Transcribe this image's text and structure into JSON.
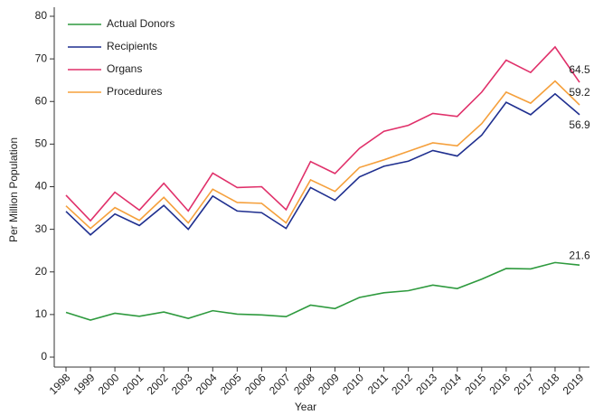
{
  "chart_data": {
    "type": "line",
    "xlabel": "Year",
    "ylabel": "Per Million Population",
    "categories": [
      "1998",
      "1999",
      "2000",
      "2001",
      "2002",
      "2003",
      "2004",
      "2005",
      "2006",
      "2007",
      "2008",
      "2009",
      "2010",
      "2011",
      "2012",
      "2013",
      "2014",
      "2015",
      "2016",
      "2017",
      "2018",
      "2019"
    ],
    "series": [
      {
        "name": "Actual Donors",
        "color": "#2e9a3e",
        "values": [
          10.5,
          8.7,
          10.3,
          9.6,
          10.6,
          9.1,
          10.9,
          10.1,
          9.9,
          9.5,
          12.2,
          11.4,
          14.0,
          15.1,
          15.6,
          16.9,
          16.1,
          18.3,
          20.8,
          20.7,
          22.2,
          21.6
        ],
        "value_labels": [
          null,
          null,
          null,
          null,
          null,
          null,
          null,
          null,
          null,
          null,
          null,
          null,
          null,
          null,
          null,
          null,
          null,
          null,
          null,
          null,
          null,
          "21.6"
        ]
      },
      {
        "name": "Recipients",
        "color": "#1f2f8f",
        "values": [
          34.2,
          28.7,
          33.6,
          30.9,
          35.6,
          30.0,
          37.8,
          34.3,
          33.9,
          30.2,
          39.8,
          36.8,
          42.3,
          44.8,
          46.0,
          48.5,
          47.2,
          52.1,
          59.8,
          56.9,
          61.8,
          56.9
        ],
        "value_labels": [
          null,
          null,
          null,
          null,
          null,
          null,
          null,
          null,
          null,
          null,
          null,
          null,
          null,
          null,
          null,
          null,
          null,
          null,
          null,
          null,
          null,
          "56.9"
        ]
      },
      {
        "name": "Organs",
        "color": "#e0306a",
        "values": [
          38.0,
          32.0,
          38.7,
          34.5,
          40.8,
          34.3,
          43.2,
          39.8,
          40.0,
          34.6,
          45.9,
          43.1,
          49.0,
          53.0,
          54.4,
          57.2,
          56.5,
          62.2,
          69.7,
          66.8,
          72.8,
          64.5
        ],
        "value_labels": [
          null,
          null,
          null,
          null,
          null,
          null,
          null,
          null,
          null,
          null,
          null,
          null,
          null,
          null,
          null,
          null,
          null,
          null,
          null,
          null,
          null,
          "64.5"
        ]
      },
      {
        "name": "Procedures",
        "color": "#f5a03c",
        "values": [
          35.5,
          30.2,
          35.1,
          32.1,
          37.5,
          31.5,
          39.4,
          36.3,
          36.1,
          31.5,
          41.6,
          38.9,
          44.5,
          46.3,
          48.3,
          50.3,
          49.6,
          54.8,
          62.2,
          59.6,
          64.8,
          59.2
        ],
        "value_labels": [
          null,
          null,
          null,
          null,
          null,
          null,
          null,
          null,
          null,
          null,
          null,
          null,
          null,
          null,
          null,
          null,
          null,
          null,
          null,
          null,
          null,
          "59.2"
        ]
      }
    ],
    "ylim": [
      0,
      80
    ],
    "yticks": [
      0,
      10,
      20,
      30,
      40,
      50,
      60,
      70,
      80
    ],
    "grid": false,
    "legend": "upper left"
  }
}
